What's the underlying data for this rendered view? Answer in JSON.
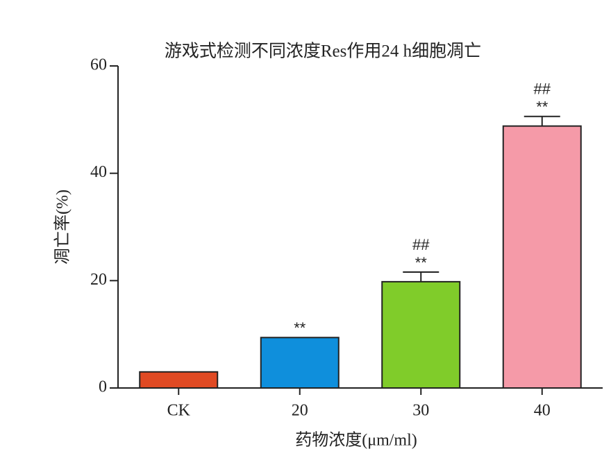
{
  "chart_data": {
    "type": "bar",
    "title": "游戏式检测不同浓度Res作用24 h细胞凋亡",
    "x_label": "药物浓度(μm/ml)",
    "y_label": "凋亡率(%)",
    "categories": [
      "CK",
      "20",
      "30",
      "40"
    ],
    "values": [
      3.0,
      9.4,
      19.8,
      48.8
    ],
    "errors": [
      null,
      null,
      1.8,
      1.8
    ],
    "significance": [
      null,
      "**",
      "**",
      "**"
    ],
    "significance2": [
      null,
      null,
      "##",
      "##"
    ],
    "colors": [
      "#e04a23",
      "#0f8fdc",
      "#80cc2a",
      "#f59aa8"
    ],
    "ylim": [
      0,
      60
    ],
    "yticks": [
      0,
      20,
      40,
      60
    ]
  }
}
